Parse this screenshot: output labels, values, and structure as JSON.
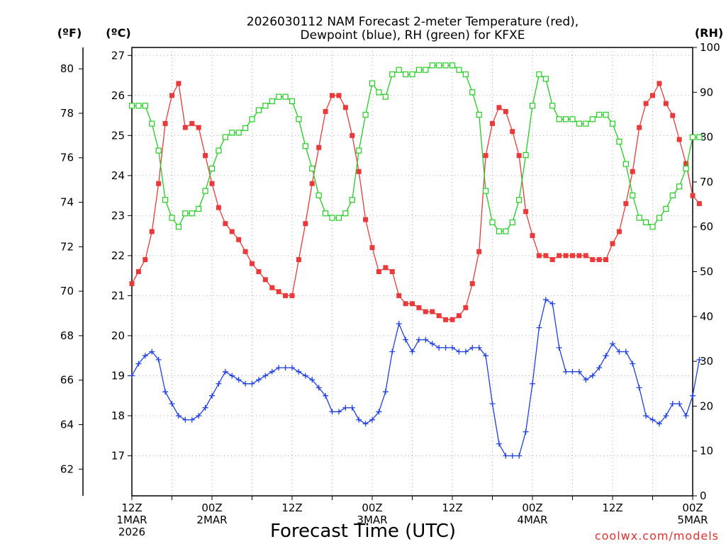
{
  "chart_data": {
    "type": "line",
    "title_line1": "2026030112 NAM Forecast 2-meter Temperature (red),",
    "title_line2": "Dewpoint (blue), RH (green) for KFXE",
    "xlabel": "Forecast Time (UTC)",
    "credit": "coolwx.com/models",
    "units": {
      "fahrenheit": "(ºF)",
      "celsius": "(ºC)",
      "rh": "(RH)"
    },
    "x_ticks": [
      {
        "hour": 0,
        "lines": [
          "12Z",
          "1MAR",
          "2026"
        ]
      },
      {
        "hour": 12,
        "lines": [
          "00Z",
          "2MAR"
        ]
      },
      {
        "hour": 24,
        "lines": [
          "12Z"
        ]
      },
      {
        "hour": 36,
        "lines": [
          "00Z",
          "3MAR"
        ]
      },
      {
        "hour": 48,
        "lines": [
          "12Z"
        ]
      },
      {
        "hour": 60,
        "lines": [
          "00Z",
          "4MAR"
        ]
      },
      {
        "hour": 72,
        "lines": [
          "12Z"
        ]
      },
      {
        "hour": 84,
        "lines": [
          "00Z",
          "5MAR"
        ]
      }
    ],
    "x_range": [
      0,
      84
    ],
    "celsius_axis": {
      "range": [
        16.0,
        27.2
      ],
      "ticks": [
        17,
        18,
        19,
        20,
        21,
        22,
        23,
        24,
        25,
        26,
        27
      ]
    },
    "fahrenheit_axis": {
      "ticks": [
        62,
        64,
        66,
        68,
        70,
        72,
        74,
        76,
        78,
        80
      ]
    },
    "rh_axis": {
      "range": [
        0,
        100
      ],
      "ticks": [
        0,
        10,
        20,
        30,
        40,
        50,
        60,
        70,
        80,
        90,
        100
      ]
    },
    "grid": true,
    "series": [
      {
        "name": "Temperature",
        "color": "#e83a3a",
        "marker": "filled-square",
        "axis": "celsius",
        "values": [
          21.3,
          21.6,
          21.9,
          22.6,
          23.8,
          25.3,
          26.0,
          26.3,
          25.2,
          25.3,
          25.2,
          24.5,
          23.8,
          23.2,
          22.8,
          22.6,
          22.4,
          22.1,
          21.8,
          21.6,
          21.4,
          21.2,
          21.1,
          21.0,
          21.0,
          21.9,
          22.8,
          23.8,
          24.7,
          25.6,
          26.0,
          26.0,
          25.7,
          25.0,
          24.1,
          22.9,
          22.2,
          21.6,
          21.7,
          21.6,
          21.0,
          20.8,
          20.8,
          20.7,
          20.6,
          20.6,
          20.5,
          20.4,
          20.4,
          20.5,
          20.7,
          21.3,
          22.1,
          24.5,
          25.3,
          25.7,
          25.6,
          25.1,
          24.5,
          23.1,
          22.5,
          22.0,
          22.0,
          21.9,
          22.0,
          22.0,
          22.0,
          22.0,
          22.0,
          21.9,
          21.9,
          21.9,
          22.3,
          22.6,
          23.3,
          24.1,
          25.2,
          25.8,
          26.0,
          26.3,
          25.8,
          25.5,
          24.9,
          24.3,
          23.5,
          23.3
        ]
      },
      {
        "name": "Dewpoint",
        "color": "#2040e0",
        "marker": "plus",
        "axis": "celsius",
        "values": [
          19.0,
          19.3,
          19.5,
          19.6,
          19.4,
          18.6,
          18.3,
          18.0,
          17.9,
          17.9,
          18.0,
          18.2,
          18.5,
          18.8,
          19.1,
          19.0,
          18.9,
          18.8,
          18.8,
          18.9,
          19.0,
          19.1,
          19.2,
          19.2,
          19.2,
          19.1,
          19.0,
          18.9,
          18.7,
          18.5,
          18.1,
          18.1,
          18.2,
          18.2,
          17.9,
          17.8,
          17.9,
          18.1,
          18.6,
          19.6,
          20.3,
          19.9,
          19.6,
          19.9,
          19.9,
          19.8,
          19.7,
          19.7,
          19.7,
          19.6,
          19.6,
          19.7,
          19.7,
          19.5,
          18.3,
          17.3,
          17.0,
          17.0,
          17.0,
          17.6,
          18.8,
          20.2,
          20.9,
          20.8,
          19.7,
          19.1,
          19.1,
          19.1,
          18.9,
          19.0,
          19.2,
          19.5,
          19.8,
          19.6,
          19.6,
          19.3,
          18.7,
          18.0,
          17.9,
          17.8,
          18.0,
          18.3,
          18.3,
          18.0,
          18.5,
          19.4
        ]
      },
      {
        "name": "RH",
        "color": "#22cc22",
        "marker": "open-square",
        "axis": "rh",
        "values": [
          87,
          87,
          87,
          83,
          77,
          66,
          62,
          60,
          63,
          63,
          64,
          68,
          73,
          77,
          80,
          81,
          81,
          82,
          84,
          86,
          87,
          88,
          89,
          89,
          88,
          84,
          78,
          73,
          67,
          63,
          62,
          62,
          63,
          66,
          77,
          85,
          92,
          90,
          89,
          94,
          95,
          94,
          94,
          95,
          95,
          96,
          96,
          96,
          96,
          95,
          94,
          90,
          85,
          68,
          61,
          59,
          59,
          61,
          66,
          76,
          87,
          94,
          93,
          87,
          84,
          84,
          84,
          83,
          83,
          84,
          85,
          85,
          83,
          79,
          74,
          67,
          62,
          61,
          60,
          62,
          64,
          67,
          69,
          73,
          80,
          80
        ]
      }
    ]
  }
}
